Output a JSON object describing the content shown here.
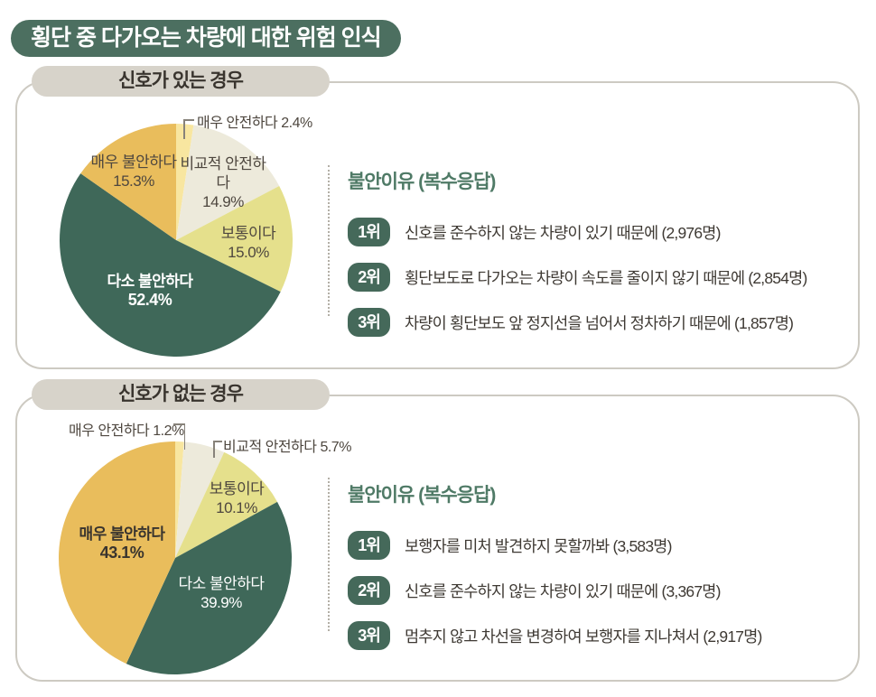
{
  "page": {
    "title": "횡단 중 다가오는 차량에 대한 위험 인식"
  },
  "colors": {
    "brand_green": "#4c6f60",
    "rank_pill_green": "#45695a",
    "reasons_title_green": "#4f7a66",
    "header_pill_gray": "#d7d3ca",
    "panel_border": "#cdcac2",
    "slice_very_safe": "#f8e6a0",
    "slice_fairly_safe": "#edeadb",
    "slice_neutral": "#e5e08c",
    "slice_somewhat_uneasy": "#3f6859",
    "slice_very_uneasy": "#e9bd5c"
  },
  "chart_data": [
    {
      "type": "pie",
      "title": "신호가 있는 경우",
      "labels": [
        "매우 안전하다",
        "비교적 안전하다",
        "보통이다",
        "다소 불안하다",
        "매우 불안하다"
      ],
      "values": [
        2.4,
        14.9,
        15.0,
        52.4,
        15.3
      ],
      "pct_labels": [
        "2.4%",
        "14.9%",
        "15.0%",
        "52.4%",
        "15.3%"
      ],
      "colors": [
        "#f8e6a0",
        "#edeadb",
        "#e5e08c",
        "#3f6859",
        "#e9bd5c"
      ],
      "slice_ids": [
        "very-safe",
        "fairly-safe",
        "neutral",
        "somewhat-uneasy",
        "very-uneasy"
      ],
      "start_angle": "12-oclock",
      "direction": "clockwise",
      "legend_position": "in-slice"
    },
    {
      "type": "pie",
      "title": "신호가 없는 경우",
      "labels": [
        "매우 안전하다",
        "비교적 안전하다",
        "보통이다",
        "다소 불안하다",
        "매우 불안하다"
      ],
      "values": [
        1.2,
        5.7,
        10.1,
        39.9,
        43.1
      ],
      "pct_labels": [
        "1.2%",
        "5.7%",
        "10.1%",
        "39.9%",
        "43.1%"
      ],
      "colors": [
        "#f8e6a0",
        "#edeadb",
        "#e5e08c",
        "#3f6859",
        "#e9bd5c"
      ],
      "slice_ids": [
        "very-safe",
        "fairly-safe",
        "neutral",
        "somewhat-uneasy",
        "very-uneasy"
      ],
      "start_angle": "12-oclock",
      "direction": "clockwise",
      "legend_position": "in-slice"
    }
  ],
  "panels": [
    {
      "header": "신호가 있는 경우",
      "reasons_title": "불안이유 (복수응답)",
      "reasons": [
        {
          "rank": "1위",
          "text": "신호를 준수하지 않는 차량이 있기 때문에 (2,976명)"
        },
        {
          "rank": "2위",
          "text": "횡단보도로 다가오는 차량이 속도를 줄이지 않기 때문에 (2,854명)"
        },
        {
          "rank": "3위",
          "text": "차량이 횡단보도 앞 정지선을 넘어서 정차하기 때문에 (1,857명)"
        }
      ]
    },
    {
      "header": "신호가 없는 경우",
      "reasons_title": "불안이유 (복수응답)",
      "reasons": [
        {
          "rank": "1위",
          "text": "보행자를 미처 발견하지 못할까봐 (3,583명)"
        },
        {
          "rank": "2위",
          "text": "신호를 준수하지 않는 차량이 있기 때문에 (3,367명)"
        },
        {
          "rank": "3위",
          "text": "멈추지 않고 차선을 변경하여 보행자를 지나쳐서 (2,917명)"
        }
      ]
    }
  ]
}
